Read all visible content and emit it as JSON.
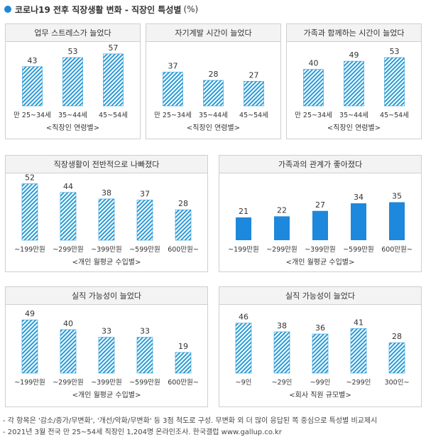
{
  "header": {
    "title": "코로나19 전후 직장생활 변화 - 직장인 특성별",
    "unit": "(%)"
  },
  "colors": {
    "hatch": "#2a9bd6",
    "solid": "#1e88dc",
    "title_dot": "#1f86d6"
  },
  "chart_data": [
    {
      "type": "bar",
      "title": "업무 스트레스가 늘었다",
      "categories": [
        "만 25~34세",
        "35~44세",
        "45~54세"
      ],
      "values": [
        43,
        53,
        57
      ],
      "xlabel": "<직장인 연령별>",
      "fill": "hatched",
      "ylim": [
        0,
        70
      ]
    },
    {
      "type": "bar",
      "title": "자기계발 시간이 늘었다",
      "categories": [
        "만 25~34세",
        "35~44세",
        "45~54세"
      ],
      "values": [
        37,
        28,
        27
      ],
      "xlabel": "<직장인 연령별>",
      "fill": "hatched",
      "ylim": [
        0,
        70
      ]
    },
    {
      "type": "bar",
      "title": "가족과 함께하는 시간이 늘었다",
      "categories": [
        "만 25~34세",
        "35~44세",
        "45~54세"
      ],
      "values": [
        40,
        49,
        53
      ],
      "xlabel": "<직장인 연령별>",
      "fill": "hatched",
      "ylim": [
        0,
        70
      ]
    },
    {
      "type": "bar",
      "title": "직장생활이 전반적으로 나빠졌다",
      "categories": [
        "~199만원",
        "~299만원",
        "~399만원",
        "~599만원",
        "600만원~"
      ],
      "values": [
        52,
        44,
        38,
        37,
        28
      ],
      "xlabel": "<개인 월평균 수입별>",
      "fill": "hatched",
      "ylim": [
        0,
        60
      ]
    },
    {
      "type": "bar",
      "title": "가족과의 관계가 좋아졌다",
      "categories": [
        "~199만원",
        "~299만원",
        "~399만원",
        "~599만원",
        "600만원~"
      ],
      "values": [
        21,
        22,
        27,
        34,
        35
      ],
      "xlabel": "<개인 월평균 수입별>",
      "fill": "solid",
      "ylim": [
        0,
        60
      ]
    },
    {
      "type": "bar",
      "title": "실직 가능성이 늘었다",
      "categories": [
        "~199만원",
        "~299만원",
        "~399만원",
        "~599만원",
        "600만원~"
      ],
      "values": [
        49,
        40,
        33,
        33,
        19
      ],
      "xlabel": "<개인 월평균 수입별>",
      "fill": "hatched",
      "ylim": [
        0,
        60
      ]
    },
    {
      "type": "bar",
      "title": "실직 가능성이 늘었다",
      "categories": [
        "~9인",
        "~29인",
        "~99인",
        "~299인",
        "300인~"
      ],
      "values": [
        46,
        38,
        36,
        41,
        28
      ],
      "xlabel": "<회사 직원 규모별>",
      "fill": "hatched",
      "ylim": [
        0,
        60
      ]
    }
  ],
  "notes": [
    "- 각 항목은 '감소/증가/무변화', '개선/악화/무변화' 등 3점 척도로 구성. 무변화 외 더 많이 응답된 쪽 중심으로 특성별 비교제시",
    "- 2021년 3월 전국 만 25~54세 직장인 1,204명 온라인조사. 한국갤럽 www.gallup.co.kr"
  ]
}
